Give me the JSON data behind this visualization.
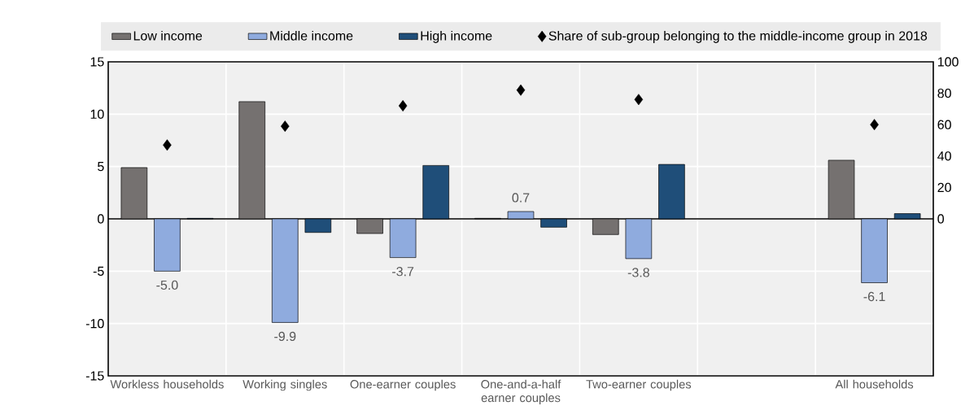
{
  "chart_data": {
    "type": "bar",
    "categories": [
      "Workless households",
      "Working singles",
      "One-earner couples",
      "One-and-a-half earner couples",
      "Two-earner couples",
      null,
      "All households"
    ],
    "series": [
      {
        "name": "Low income",
        "color": "#757170",
        "values": [
          4.9,
          11.2,
          -1.4,
          0.05,
          -1.5,
          null,
          5.6
        ]
      },
      {
        "name": "Middle income",
        "color": "#8fabde",
        "values": [
          -5.0,
          -9.9,
          -3.7,
          0.7,
          -3.8,
          null,
          -6.1
        ],
        "value_labels": [
          "-5.0",
          "-9.9",
          "-3.7",
          "0.7",
          "-3.8",
          null,
          "-6.1"
        ]
      },
      {
        "name": "High income",
        "color": "#1f4e79",
        "values": [
          0.05,
          -1.3,
          5.1,
          -0.8,
          5.2,
          null,
          0.5
        ]
      },
      {
        "name": "Share of sub-group belonging to the middle-income group in 2018",
        "type": "scatter",
        "axis": "y2",
        "marker": "diamond",
        "color": "#000000",
        "values": [
          47,
          59,
          72,
          82,
          76,
          null,
          60
        ]
      }
    ],
    "ylim": [
      -15,
      15
    ],
    "yticks": [
      -15,
      -10,
      -5,
      0,
      5,
      10,
      15
    ],
    "y2lim": [
      -100,
      100
    ],
    "y2ticks": [
      0,
      20,
      40,
      60,
      80,
      100
    ],
    "grid": true,
    "legend": "top"
  }
}
